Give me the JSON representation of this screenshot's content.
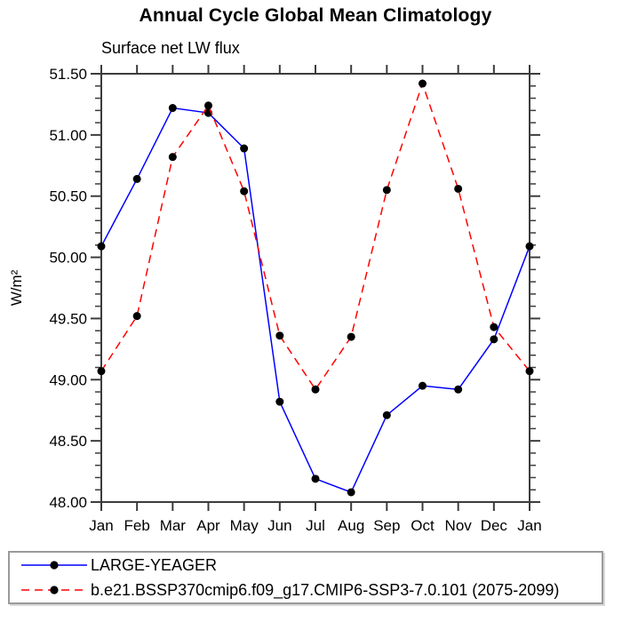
{
  "header": {
    "title": "Annual Cycle Global Mean Climatology",
    "subtitle": "Surface net LW flux"
  },
  "chart_data": {
    "type": "line",
    "title": "Annual Cycle Global Mean Climatology",
    "subtitle": "Surface net LW flux",
    "xlabel": "",
    "ylabel": "W/m²",
    "categories": [
      "Jan",
      "Feb",
      "Mar",
      "Apr",
      "May",
      "Jun",
      "Jul",
      "Aug",
      "Sep",
      "Oct",
      "Nov",
      "Dec",
      "Jan"
    ],
    "ylim": [
      48.0,
      51.5
    ],
    "ytick_step": 0.5,
    "ytick_minor_step": 0.1,
    "grid": false,
    "legend_position": "bottom-left-box",
    "axis_color": "#3c3c3c",
    "series": [
      {
        "name": "LARGE-YEAGER",
        "color": "#0000ff",
        "line_style": "solid",
        "marker": "filled-circle",
        "marker_color": "#000000",
        "values": [
          50.09,
          50.64,
          51.22,
          51.18,
          50.89,
          48.82,
          48.19,
          48.08,
          48.71,
          48.95,
          48.92,
          49.33,
          50.09
        ]
      },
      {
        "name": "b.e21.BSSP370cmip6.f09_g17.CMIP6-SSP3-7.0.101 (2075-2099)",
        "color": "#ff0000",
        "line_style": "dashed",
        "marker": "filled-circle",
        "marker_color": "#000000",
        "values": [
          49.07,
          49.52,
          50.82,
          51.24,
          50.54,
          49.36,
          48.92,
          49.35,
          50.55,
          51.42,
          50.56,
          49.43,
          49.07
        ]
      }
    ]
  }
}
